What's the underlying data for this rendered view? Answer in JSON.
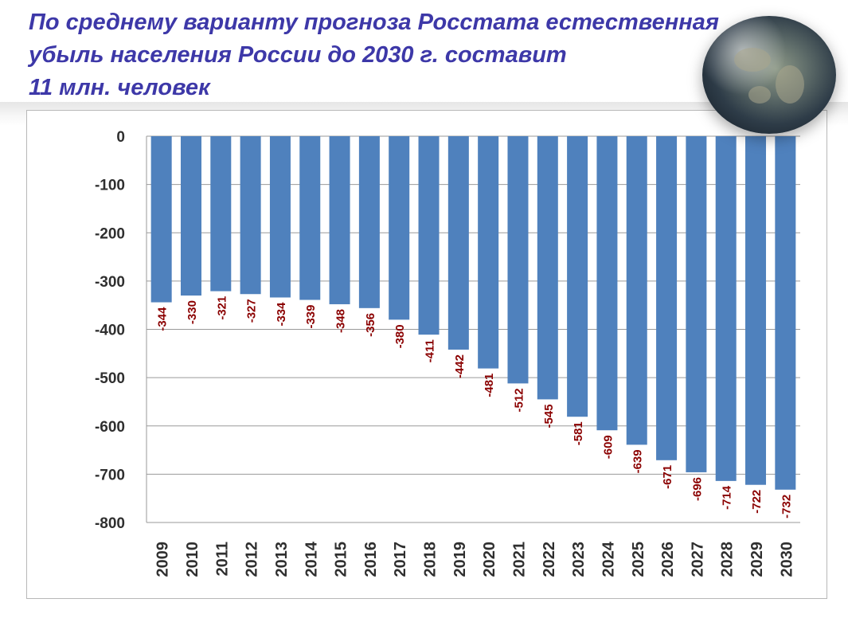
{
  "title_lines": [
    "По среднему варианту прогноза Росстата естественная",
    "убыль населения России до 2030 г. составит",
    "11 млн. человек"
  ],
  "colors": {
    "title": "#3d38a8",
    "bar": "#4f81bd",
    "data_label": "#8b0000",
    "axis_text": "#2f2f2f",
    "grid": "#9a9a9a"
  },
  "decor": {
    "globe_icon": "earth-globe-icon"
  },
  "chart_data": {
    "type": "bar",
    "title": "",
    "xlabel": "",
    "ylabel": "",
    "categories": [
      "2009",
      "2010",
      "2011",
      "2012",
      "2013",
      "2014",
      "2015",
      "2016",
      "2017",
      "2018",
      "2019",
      "2020",
      "2021",
      "2022",
      "2023",
      "2024",
      "2025",
      "2026",
      "2027",
      "2028",
      "2029",
      "2030"
    ],
    "values": [
      -344,
      -330,
      -321,
      -327,
      -334,
      -339,
      -348,
      -356,
      -380,
      -411,
      -442,
      -481,
      -512,
      -545,
      -581,
      -609,
      -639,
      -671,
      -696,
      -714,
      -722,
      -732
    ],
    "data_labels": [
      "-344",
      "-330",
      "-321",
      "-327",
      "-334",
      "-339",
      "-348",
      "-356",
      "-380",
      "-411",
      "-442",
      "-481",
      "-512",
      "-545",
      "-581",
      "-609",
      "-639",
      "-671",
      "-696",
      "-714",
      "-722",
      "-732"
    ],
    "ylim": [
      -800,
      0
    ],
    "yticks": [
      0,
      -100,
      -200,
      -300,
      -400,
      -500,
      -600,
      -700,
      -800
    ],
    "ytick_labels": [
      "0",
      "-100",
      "-200",
      "-300",
      "-400",
      "-500",
      "-600",
      "-700",
      "-800"
    ],
    "grid": true,
    "legend": "none"
  }
}
